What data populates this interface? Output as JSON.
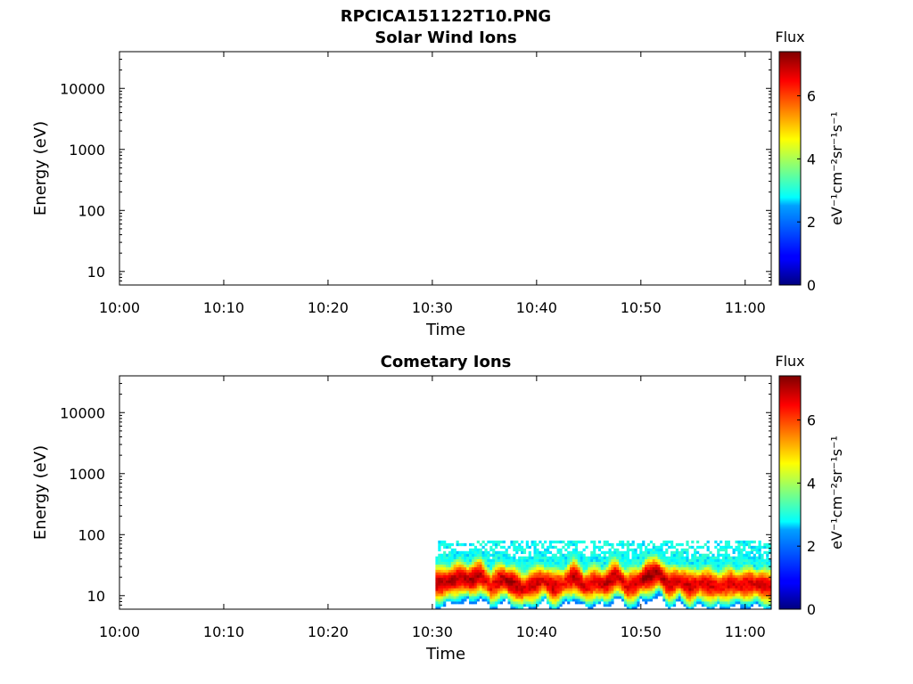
{
  "figure": {
    "title": "RPCICA151122T10.PNG"
  },
  "chart_data": [
    {
      "type": "heatmap",
      "title": "Solar Wind Ions",
      "xlabel": "Time",
      "ylabel": "Energy (eV)",
      "x_ticks": [
        "10:00",
        "10:10",
        "10:20",
        "10:30",
        "10:40",
        "10:50",
        "11:00"
      ],
      "x_range_minutes": [
        0,
        62.5
      ],
      "y_scale": "log",
      "y_ticks": [
        "10",
        "100",
        "1000",
        "10000"
      ],
      "y_range": [
        6,
        40000
      ],
      "colorbar": {
        "label": "Flux",
        "unit": "eV⁻¹cm⁻²sr⁻¹s⁻¹",
        "ticks": [
          "0",
          "2",
          "4",
          "6"
        ],
        "range": [
          0,
          7.4
        ],
        "colormap": "jet"
      },
      "grid": false,
      "data": []
    },
    {
      "type": "heatmap",
      "title": "Cometary Ions",
      "xlabel": "Time",
      "ylabel": "Energy (eV)",
      "x_ticks": [
        "10:00",
        "10:10",
        "10:20",
        "10:30",
        "10:40",
        "10:50",
        "11:00"
      ],
      "x_range_minutes": [
        0,
        62.5
      ],
      "y_scale": "log",
      "y_ticks": [
        "10",
        "100",
        "1000",
        "10000"
      ],
      "y_range": [
        6,
        40000
      ],
      "colorbar": {
        "label": "Flux",
        "unit": "eV⁻¹cm⁻²sr⁻¹s⁻¹",
        "ticks": [
          "0",
          "2",
          "4",
          "6"
        ],
        "range": [
          0,
          7.4
        ],
        "colormap": "jet"
      },
      "grid": false,
      "data_description_values": {
        "time_start_minute": 30.3,
        "time_end_minute": 62.5,
        "energy_min_eV": 6,
        "energy_max_eV": 80,
        "peak_energy_eV": 15,
        "peak_flux": 7.3
      },
      "data": [
        {
          "t": 30.5,
          "peak": 7.0,
          "e_peak": 16
        },
        {
          "t": 31.5,
          "peak": 7.1,
          "e_peak": 17
        },
        {
          "t": 32.5,
          "peak": 6.8,
          "e_peak": 20
        },
        {
          "t": 33.5,
          "peak": 7.2,
          "e_peak": 18
        },
        {
          "t": 34.5,
          "peak": 6.9,
          "e_peak": 22
        },
        {
          "t": 35.5,
          "peak": 6.5,
          "e_peak": 14
        },
        {
          "t": 36.5,
          "peak": 7.0,
          "e_peak": 19
        },
        {
          "t": 37.5,
          "peak": 7.2,
          "e_peak": 16
        },
        {
          "t": 38.5,
          "peak": 6.7,
          "e_peak": 13
        },
        {
          "t": 39.5,
          "peak": 6.9,
          "e_peak": 15
        },
        {
          "t": 40.5,
          "peak": 6.6,
          "e_peak": 18
        },
        {
          "t": 41.5,
          "peak": 6.9,
          "e_peak": 14
        },
        {
          "t": 42.5,
          "peak": 6.4,
          "e_peak": 16
        },
        {
          "t": 43.5,
          "peak": 7.0,
          "e_peak": 21
        },
        {
          "t": 44.5,
          "peak": 6.8,
          "e_peak": 14
        },
        {
          "t": 45.5,
          "peak": 6.5,
          "e_peak": 17
        },
        {
          "t": 46.5,
          "peak": 7.0,
          "e_peak": 15
        },
        {
          "t": 47.5,
          "peak": 6.9,
          "e_peak": 22
        },
        {
          "t": 48.5,
          "peak": 6.6,
          "e_peak": 14
        },
        {
          "t": 49.5,
          "peak": 6.8,
          "e_peak": 16
        },
        {
          "t": 50.3,
          "peak": 7.3,
          "e_peak": 20
        },
        {
          "t": 51.5,
          "peak": 7.1,
          "e_peak": 24
        },
        {
          "t": 52.5,
          "peak": 6.9,
          "e_peak": 15
        },
        {
          "t": 53.5,
          "peak": 6.7,
          "e_peak": 18
        },
        {
          "t": 54.5,
          "peak": 6.9,
          "e_peak": 14
        },
        {
          "t": 55.5,
          "peak": 6.6,
          "e_peak": 16
        },
        {
          "t": 56.5,
          "peak": 6.8,
          "e_peak": 15
        },
        {
          "t": 57.5,
          "peak": 6.5,
          "e_peak": 14
        },
        {
          "t": 58.5,
          "peak": 6.7,
          "e_peak": 16
        },
        {
          "t": 59.5,
          "peak": 6.6,
          "e_peak": 15
        },
        {
          "t": 60.5,
          "peak": 6.7,
          "e_peak": 16
        },
        {
          "t": 61.5,
          "peak": 6.8,
          "e_peak": 15
        },
        {
          "t": 62.3,
          "peak": 6.7,
          "e_peak": 14
        }
      ]
    }
  ]
}
